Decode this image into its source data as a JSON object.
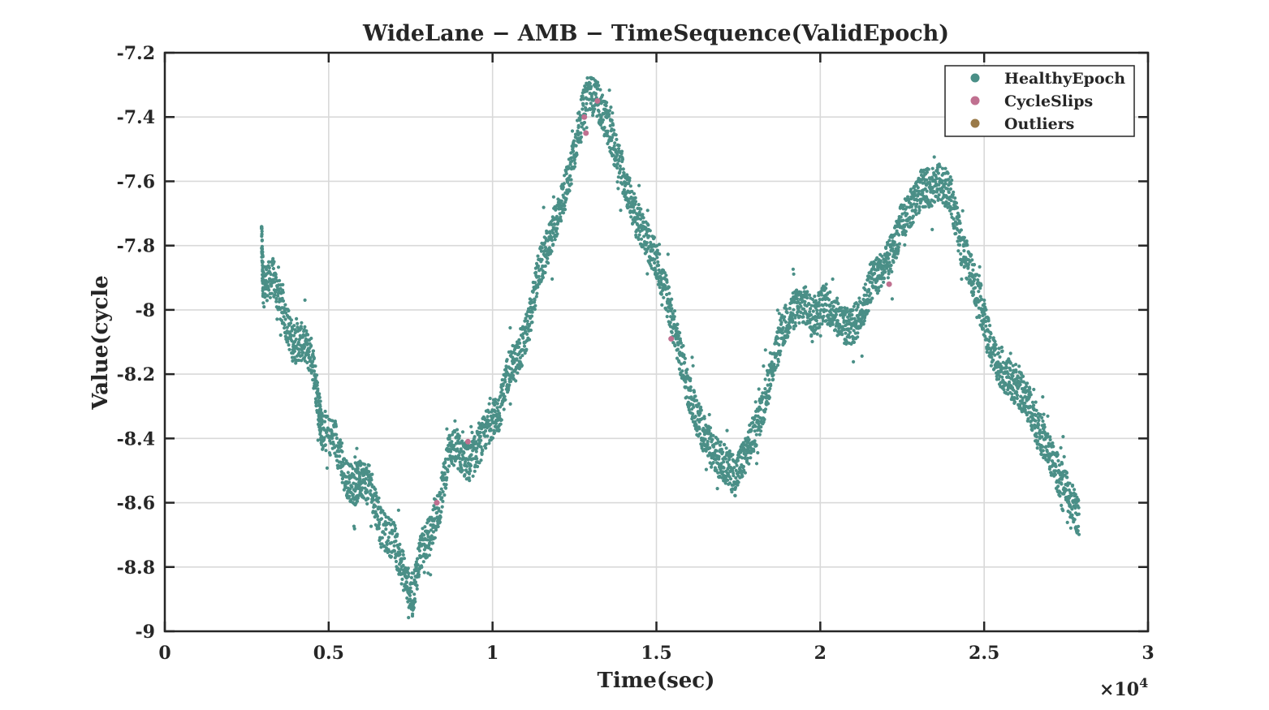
{
  "chart_data": {
    "type": "scatter",
    "title": "WideLane − AMB − TimeSequence(ValidEpoch)",
    "xlabel": "Time(sec)",
    "ylabel": "Value(cycle",
    "x_exponent_label": "×10",
    "x_exponent_power": "4",
    "x_scale": 10000,
    "xlim": [
      0,
      3
    ],
    "ylim": [
      -9,
      -7.2
    ],
    "x_ticks": [
      0,
      0.5,
      1,
      1.5,
      2,
      2.5,
      3
    ],
    "x_tick_labels": [
      "0",
      "0.5",
      "1",
      "1.5",
      "2",
      "2.5",
      "3"
    ],
    "y_ticks": [
      -7.2,
      -7.4,
      -7.6,
      -7.8,
      -8,
      -8.2,
      -8.4,
      -8.6,
      -8.8,
      -9
    ],
    "y_tick_labels": [
      "-7.2",
      "-7.4",
      "-7.6",
      "-7.8",
      "-8",
      "-8.2",
      "-8.4",
      "-8.6",
      "-8.8",
      "-9"
    ],
    "grid": true,
    "legend_position": "top-right",
    "series": [
      {
        "name": "HealthyEpoch",
        "color": "#4a8f87",
        "note_shape": "dense noisy trace",
        "points": [
          [
            2950,
            -7.76
          ],
          [
            3000,
            -7.92
          ],
          [
            3300,
            -7.9
          ],
          [
            3600,
            -8.0
          ],
          [
            3900,
            -8.1
          ],
          [
            4200,
            -8.1
          ],
          [
            4500,
            -8.15
          ],
          [
            4700,
            -8.3
          ],
          [
            4800,
            -8.38
          ],
          [
            5200,
            -8.4
          ],
          [
            5500,
            -8.52
          ],
          [
            5800,
            -8.55
          ],
          [
            6000,
            -8.52
          ],
          [
            6300,
            -8.55
          ],
          [
            6600,
            -8.68
          ],
          [
            7000,
            -8.72
          ],
          [
            7300,
            -8.82
          ],
          [
            7550,
            -8.9
          ],
          [
            7800,
            -8.75
          ],
          [
            8100,
            -8.7
          ],
          [
            8400,
            -8.6
          ],
          [
            8700,
            -8.42
          ],
          [
            9000,
            -8.45
          ],
          [
            9300,
            -8.48
          ],
          [
            9600,
            -8.42
          ],
          [
            9900,
            -8.35
          ],
          [
            10200,
            -8.32
          ],
          [
            10500,
            -8.18
          ],
          [
            10800,
            -8.15
          ],
          [
            11100,
            -8.05
          ],
          [
            11400,
            -7.88
          ],
          [
            11700,
            -7.8
          ],
          [
            12000,
            -7.7
          ],
          [
            12300,
            -7.6
          ],
          [
            12600,
            -7.45
          ],
          [
            12900,
            -7.32
          ],
          [
            13200,
            -7.35
          ],
          [
            13500,
            -7.42
          ],
          [
            13800,
            -7.52
          ],
          [
            14100,
            -7.62
          ],
          [
            14400,
            -7.72
          ],
          [
            14700,
            -7.78
          ],
          [
            15000,
            -7.85
          ],
          [
            15300,
            -7.95
          ],
          [
            15600,
            -8.08
          ],
          [
            15900,
            -8.22
          ],
          [
            16200,
            -8.32
          ],
          [
            16500,
            -8.4
          ],
          [
            16800,
            -8.45
          ],
          [
            17100,
            -8.48
          ],
          [
            17400,
            -8.52
          ],
          [
            17700,
            -8.45
          ],
          [
            18000,
            -8.38
          ],
          [
            18300,
            -8.28
          ],
          [
            18600,
            -8.15
          ],
          [
            18900,
            -8.05
          ],
          [
            19200,
            -8.0
          ],
          [
            19500,
            -7.98
          ],
          [
            19800,
            -8.02
          ],
          [
            20100,
            -7.98
          ],
          [
            20400,
            -8.0
          ],
          [
            20700,
            -8.05
          ],
          [
            21000,
            -8.05
          ],
          [
            21300,
            -8.0
          ],
          [
            21600,
            -7.9
          ],
          [
            21900,
            -7.88
          ],
          [
            22200,
            -7.82
          ],
          [
            22500,
            -7.72
          ],
          [
            22800,
            -7.68
          ],
          [
            23100,
            -7.62
          ],
          [
            23400,
            -7.62
          ],
          [
            23700,
            -7.6
          ],
          [
            24000,
            -7.65
          ],
          [
            24300,
            -7.8
          ],
          [
            24600,
            -7.88
          ],
          [
            24900,
            -7.98
          ],
          [
            25200,
            -8.12
          ],
          [
            25500,
            -8.18
          ],
          [
            25800,
            -8.22
          ],
          [
            26100,
            -8.25
          ],
          [
            26400,
            -8.3
          ],
          [
            26700,
            -8.38
          ],
          [
            27000,
            -8.45
          ],
          [
            27300,
            -8.52
          ],
          [
            27600,
            -8.58
          ],
          [
            27900,
            -8.65
          ]
        ]
      },
      {
        "name": "CycleSlips",
        "color": "#c07090",
        "points": [
          [
            8300,
            -8.6
          ],
          [
            9250,
            -8.41
          ],
          [
            12800,
            -7.4
          ],
          [
            12850,
            -7.45
          ],
          [
            13200,
            -7.35
          ],
          [
            15450,
            -8.09
          ],
          [
            22100,
            -7.92
          ]
        ]
      },
      {
        "name": "Outliers",
        "color": "#9a7a48",
        "points": []
      }
    ]
  }
}
